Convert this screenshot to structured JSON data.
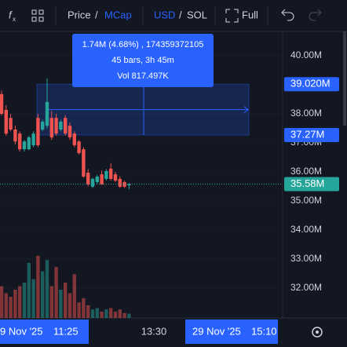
{
  "toolbar": {
    "price": "Price",
    "sep1": "/",
    "mcap": "MCap",
    "usd": "USD",
    "sep2": "/",
    "sol": "SOL",
    "full": "Full"
  },
  "chart_data": {
    "type": "candlestick",
    "ylim": [
      30.97,
      40.84
    ],
    "yticks": [
      {
        "value": 40,
        "label": "40.00M"
      },
      {
        "value": 38,
        "label": "38.00M"
      },
      {
        "value": 37,
        "label": "37.00M"
      },
      {
        "value": 36,
        "label": "36.00M"
      },
      {
        "value": 35,
        "label": "35.00M"
      },
      {
        "value": 34,
        "label": "34.00M"
      },
      {
        "value": 33,
        "label": "33.00M"
      },
      {
        "value": 32,
        "label": "32.00M"
      }
    ],
    "up_color": "#26a69a",
    "down_color": "#ef5350",
    "open": [
      38.68,
      38.14,
      37.86,
      37.46,
      37.32,
      36.78,
      36.78,
      36.92,
      37.86,
      37.46,
      37.59,
      37.86,
      37.86,
      37.46,
      37.86,
      37.59,
      37.32,
      37.05,
      36.78,
      35.97,
      35.49,
      35.65,
      35.92,
      35.76,
      36.11,
      35.92,
      35.76,
      35.65,
      35.54
    ],
    "high": [
      38.8,
      38.3,
      38.0,
      37.6,
      37.4,
      37.1,
      37.25,
      37.4,
      38.0,
      37.8,
      39.22,
      38.1,
      38.0,
      37.8,
      37.95,
      37.7,
      37.4,
      37.1,
      36.85,
      36.1,
      35.8,
      35.9,
      36.05,
      36.1,
      36.3,
      36.0,
      35.85,
      35.7,
      35.62
    ],
    "low": [
      37.95,
      37.25,
      37.4,
      36.95,
      36.7,
      36.7,
      36.75,
      36.85,
      36.85,
      37.4,
      37.5,
      37.1,
      37.25,
      37.4,
      37.25,
      37.1,
      36.85,
      36.6,
      35.8,
      35.5,
      35.45,
      35.6,
      35.55,
      35.7,
      35.7,
      35.65,
      35.45,
      35.45,
      35.4
    ],
    "close": [
      38.0,
      37.32,
      37.46,
      37.05,
      36.78,
      37.05,
      37.19,
      37.32,
      36.92,
      37.73,
      38.41,
      37.19,
      37.32,
      37.73,
      37.32,
      37.19,
      36.92,
      36.65,
      35.84,
      35.57,
      35.76,
      35.84,
      35.57,
      36.03,
      35.76,
      35.7,
      35.49,
      35.49,
      35.58
    ],
    "volume": [
      45,
      35,
      30,
      40,
      45,
      50,
      78,
      55,
      88,
      66,
      82,
      45,
      72,
      40,
      50,
      35,
      62,
      22,
      28,
      18,
      12,
      14,
      9,
      12,
      14,
      9,
      12,
      7,
      6
    ],
    "vlim": [
      0,
      100
    ],
    "markers": [
      {
        "value": 39.02,
        "label": "39.020M"
      },
      {
        "value": 37.27,
        "label": "37.27M"
      }
    ],
    "last_price": {
      "value": 35.58,
      "label": "35.58M"
    },
    "tooltip": {
      "line1": "1.74M (4.68%) , 174359372105",
      "line2": "45 bars, 3h 45m",
      "line3": "Vol 817.497K"
    },
    "x_labels": {
      "start_date": "9 Nov '25",
      "start_time": "11:25",
      "mid": "13:30",
      "end_date": "29 Nov '25",
      "end_time": "15:10"
    }
  }
}
